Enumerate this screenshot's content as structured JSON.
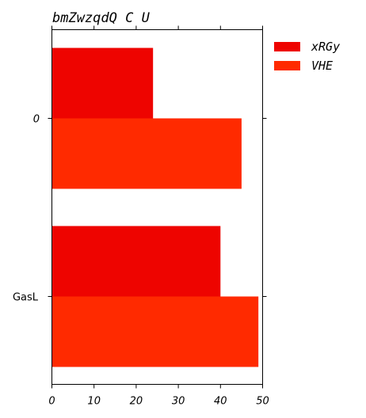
{
  "chart_data": {
    "type": "bar",
    "orientation": "horizontal",
    "title": "bmZwzqdQ C U",
    "categories": [
      "0",
      "GasL"
    ],
    "series": [
      {
        "name": "xRGy",
        "values": [
          24,
          40
        ],
        "color": "#ee0400"
      },
      {
        "name": "VHE",
        "values": [
          45,
          49
        ],
        "color": "#ff2a00"
      }
    ],
    "xlim": [
      0,
      50
    ],
    "xticks": [
      "0",
      "10",
      "20",
      "30",
      "40",
      "50"
    ],
    "xlabel": "",
    "ylabel": "",
    "grid": false,
    "legend_position": "outside-right"
  }
}
